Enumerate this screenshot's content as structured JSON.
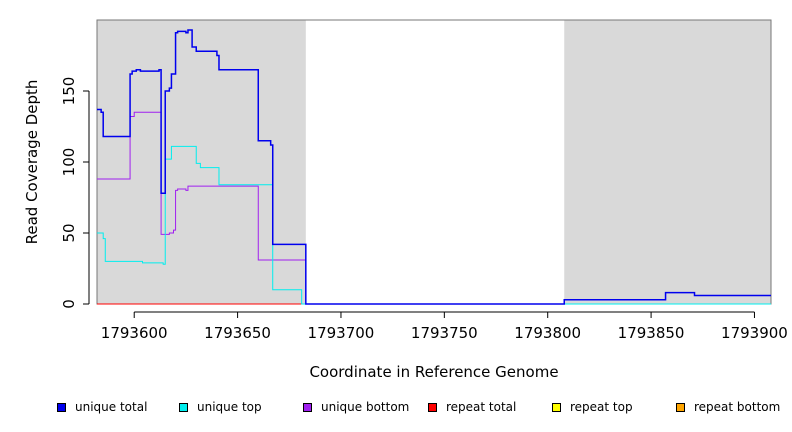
{
  "chart_data": {
    "type": "line",
    "title": "",
    "xlabel": "Coordinate in Reference Genome",
    "ylabel": "Read Coverage Depth",
    "xlim": [
      1793582,
      1793908
    ],
    "ylim": [
      0,
      200
    ],
    "x_ticks": [
      1793600,
      1793650,
      1793700,
      1793750,
      1793800,
      1793850,
      1793900
    ],
    "y_ticks": [
      0,
      50,
      100,
      150
    ],
    "shaded_regions": [
      [
        1793582,
        1793683
      ],
      [
        1793808,
        1793908
      ]
    ],
    "grid": false,
    "legend_position": "bottom",
    "series": [
      {
        "name": "unique total",
        "color": "#0000ee",
        "points": [
          [
            1793582,
            137
          ],
          [
            1793584,
            135
          ],
          [
            1793585,
            118
          ],
          [
            1793597,
            118
          ],
          [
            1793598,
            162
          ],
          [
            1793599,
            164
          ],
          [
            1793601,
            165
          ],
          [
            1793603,
            164
          ],
          [
            1793612,
            165
          ],
          [
            1793613,
            78
          ],
          [
            1793615,
            150
          ],
          [
            1793617,
            152
          ],
          [
            1793618,
            162
          ],
          [
            1793620,
            191
          ],
          [
            1793621,
            192
          ],
          [
            1793625,
            191
          ],
          [
            1793626,
            193
          ],
          [
            1793628,
            181
          ],
          [
            1793630,
            178
          ],
          [
            1793640,
            175
          ],
          [
            1793641,
            165
          ],
          [
            1793659,
            165
          ],
          [
            1793660,
            115
          ],
          [
            1793666,
            112
          ],
          [
            1793667,
            42
          ],
          [
            1793682,
            42
          ],
          [
            1793683,
            0
          ],
          [
            1793808,
            3
          ],
          [
            1793856,
            3
          ],
          [
            1793857,
            8
          ],
          [
            1793870,
            8
          ],
          [
            1793871,
            6
          ],
          [
            1793908,
            6
          ]
        ]
      },
      {
        "name": "unique top",
        "color": "#00eeee",
        "points": [
          [
            1793582,
            50
          ],
          [
            1793585,
            46
          ],
          [
            1793586,
            30
          ],
          [
            1793603,
            30
          ],
          [
            1793604,
            29
          ],
          [
            1793614,
            28
          ],
          [
            1793615,
            102
          ],
          [
            1793618,
            111
          ],
          [
            1793629,
            111
          ],
          [
            1793630,
            99
          ],
          [
            1793632,
            96
          ],
          [
            1793640,
            96
          ],
          [
            1793641,
            84
          ],
          [
            1793666,
            84
          ],
          [
            1793667,
            10
          ],
          [
            1793680,
            10
          ],
          [
            1793681,
            0
          ],
          [
            1793908,
            0
          ]
        ]
      },
      {
        "name": "unique bottom",
        "color": "#a020f0",
        "points": [
          [
            1793582,
            88
          ],
          [
            1793597,
            88
          ],
          [
            1793598,
            132
          ],
          [
            1793600,
            135
          ],
          [
            1793612,
            135
          ],
          [
            1793613,
            49
          ],
          [
            1793617,
            50
          ],
          [
            1793619,
            52
          ],
          [
            1793620,
            80
          ],
          [
            1793621,
            81
          ],
          [
            1793625,
            80
          ],
          [
            1793626,
            83
          ],
          [
            1793659,
            83
          ],
          [
            1793660,
            31
          ],
          [
            1793682,
            31
          ],
          [
            1793683,
            0
          ],
          [
            1793908,
            0
          ]
        ]
      },
      {
        "name": "repeat total",
        "color": "#ff0000",
        "points": [
          [
            1793582,
            0
          ],
          [
            1793908,
            0
          ]
        ]
      },
      {
        "name": "repeat top",
        "color": "#ffff00",
        "points": [
          [
            1793582,
            0
          ],
          [
            1793908,
            0
          ]
        ]
      },
      {
        "name": "repeat bottom",
        "color": "#ffa500",
        "points": [
          [
            1793582,
            0
          ],
          [
            1793908,
            0
          ]
        ]
      }
    ]
  },
  "legend": {
    "items": [
      {
        "label": "unique total",
        "color": "#0000ee"
      },
      {
        "label": "unique top",
        "color": "#00eeee"
      },
      {
        "label": "unique bottom",
        "color": "#a020f0"
      },
      {
        "label": "repeat total",
        "color": "#ff0000"
      },
      {
        "label": "repeat top",
        "color": "#ffff00"
      },
      {
        "label": "repeat bottom",
        "color": "#ffa500"
      }
    ]
  }
}
